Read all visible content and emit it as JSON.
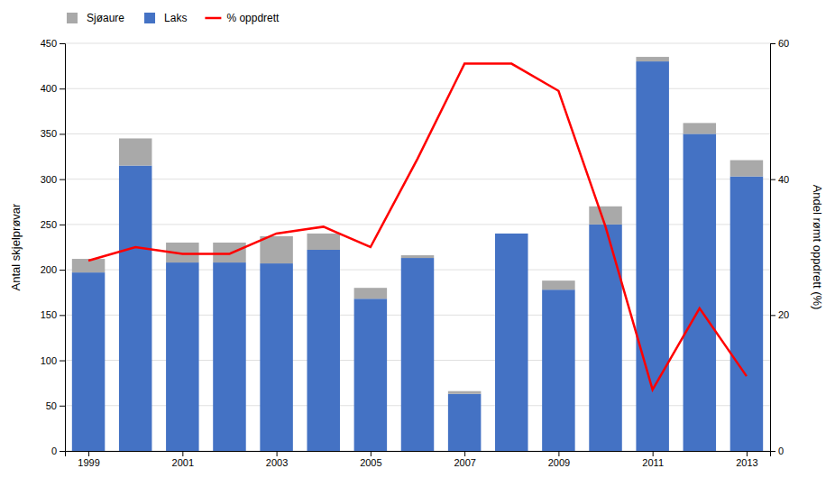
{
  "chart_data": {
    "type": "bar",
    "stacked": true,
    "x": [
      1999,
      2000,
      2001,
      2002,
      2003,
      2004,
      2005,
      2006,
      2007,
      2008,
      2009,
      2010,
      2011,
      2012,
      2013
    ],
    "xlim": [
      1998.5,
      2013.5
    ],
    "xticks": [
      1999,
      2001,
      2003,
      2005,
      2007,
      2009,
      2011,
      2013
    ],
    "ylim": [
      0,
      450
    ],
    "yticks": [
      0,
      50,
      100,
      150,
      200,
      250,
      300,
      350,
      400,
      450
    ],
    "y2lim": [
      0,
      60
    ],
    "y2ticks": [
      0,
      20,
      40,
      60
    ],
    "ylabel": "Antal skjelprøvar",
    "y2label": "Andel rømt oppdrett (%)",
    "grid": true,
    "legend": "upper left",
    "series": [
      {
        "name": "Laks",
        "color": "#4472C4",
        "values": [
          197,
          315,
          208,
          208,
          207,
          222,
          168,
          213,
          63,
          240,
          178,
          250,
          430,
          350,
          303
        ]
      },
      {
        "name": "Sjøaure",
        "color": "#A9A9A9",
        "values": [
          15,
          30,
          22,
          22,
          30,
          18,
          12,
          3,
          3,
          0,
          10,
          20,
          5,
          12,
          18
        ]
      },
      {
        "name": "% oppdrett",
        "type": "line",
        "axis": "y2",
        "color": "#FF0000",
        "values": [
          28,
          30,
          29,
          29,
          32,
          33,
          30,
          43,
          57,
          57,
          53,
          33,
          9,
          21,
          11
        ]
      }
    ]
  }
}
